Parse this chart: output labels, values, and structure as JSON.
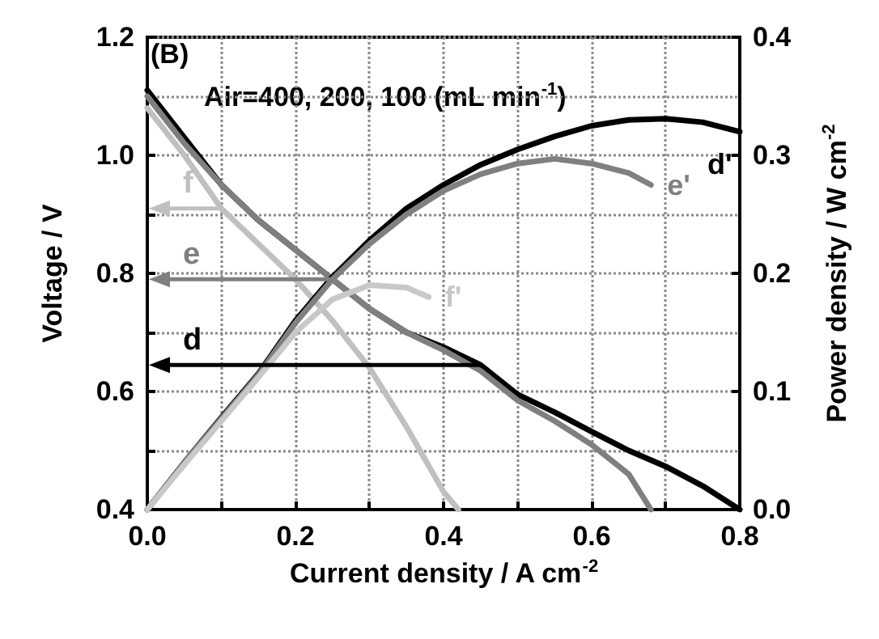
{
  "chart_data": {
    "type": "line",
    "xlabel": "Current density / A cm$^{-2}$",
    "ylabel": "Voltage / V",
    "y2label": "Power density / W cm$^{-2}$",
    "annotations": [
      "(B)",
      "Air=400, 200, 100 (mL min$^{-1}$)",
      {
        "text": "d",
        "x": 0.45,
        "y": 0.645
      },
      {
        "text": "e",
        "x": 0.25,
        "y": 0.79
      },
      {
        "text": "f",
        "x": 0.1,
        "y": 0.91
      }
    ],
    "xlim": [
      0,
      0.8
    ],
    "ylim": [
      0.4,
      1.2
    ],
    "y2lim": [
      0,
      0.4
    ],
    "xticks": [
      {
        "value": 0,
        "label": "0.0"
      },
      {
        "value": 0.1,
        "label": null
      },
      {
        "value": 0.2,
        "label": "0.2"
      },
      {
        "value": 0.3,
        "label": null
      },
      {
        "value": 0.4,
        "label": "0.4"
      },
      {
        "value": 0.5,
        "label": null
      },
      {
        "value": 0.6,
        "label": "0.6"
      },
      {
        "value": 0.7,
        "label": null
      },
      {
        "value": 0.8,
        "label": "0.8"
      }
    ],
    "yticks": [
      {
        "value": 0.4,
        "label": "0.4"
      },
      {
        "value": 0.5,
        "label": null
      },
      {
        "value": 0.6,
        "label": "0.6"
      },
      {
        "value": 0.7,
        "label": null
      },
      {
        "value": 0.8,
        "label": "0.8"
      },
      {
        "value": 0.9,
        "label": null
      },
      {
        "value": 1.0,
        "label": "1.0"
      },
      {
        "value": 1.1,
        "label": null
      },
      {
        "value": 1.2,
        "label": "1.2"
      }
    ],
    "y2ticks": [
      {
        "value": 0,
        "label": "0.0"
      },
      {
        "value": 0.1,
        "label": "0.1"
      },
      {
        "value": 0.2,
        "label": "0.2"
      },
      {
        "value": 0.3,
        "label": "0.3"
      },
      {
        "value": 0.4,
        "label": "0.4"
      }
    ],
    "grid": true,
    "marker": "none",
    "line_style": "solid",
    "legend": false,
    "series": [
      {
        "color": "#000000",
        "x": [
          0,
          0.05,
          0.1,
          0.15,
          0.2,
          0.25,
          0.3,
          0.35,
          0.4,
          0.45,
          0.5,
          0.55,
          0.6,
          0.65,
          0.7,
          0.75,
          0.8
        ],
        "values": [
          1.11,
          1.03,
          0.95,
          0.89,
          0.84,
          0.79,
          0.74,
          0.7,
          0.675,
          0.645,
          0.595,
          0.565,
          0.532,
          0.5,
          0.473,
          0.44,
          0.4
        ]
      },
      {
        "color": "#7f7f7f",
        "x": [
          0,
          0.05,
          0.1,
          0.15,
          0.2,
          0.25,
          0.3,
          0.35,
          0.4,
          0.45,
          0.5,
          0.55,
          0.6,
          0.65,
          0.68
        ],
        "values": [
          1.1,
          1.02,
          0.95,
          0.89,
          0.84,
          0.79,
          0.74,
          0.7,
          0.67,
          0.635,
          0.585,
          0.55,
          0.51,
          0.46,
          0.4
        ]
      },
      {
        "color": "#c0c0c0",
        "x": [
          0,
          0.05,
          0.1,
          0.15,
          0.2,
          0.25,
          0.3,
          0.35,
          0.4,
          0.42
        ],
        "values": [
          1.08,
          1.0,
          0.91,
          0.85,
          0.79,
          0.72,
          0.64,
          0.54,
          0.43,
          0.4
        ]
      },
      {
        "name": "d'",
        "axis": "y2",
        "color": "#000000",
        "x": [
          0,
          0.05,
          0.1,
          0.15,
          0.2,
          0.25,
          0.3,
          0.35,
          0.4,
          0.45,
          0.5,
          0.55,
          0.6,
          0.65,
          0.7,
          0.75,
          0.8
        ],
        "values": [
          0,
          0.04,
          0.078,
          0.115,
          0.16,
          0.197,
          0.228,
          0.255,
          0.275,
          0.292,
          0.305,
          0.316,
          0.325,
          0.33,
          0.331,
          0.328,
          0.32
        ]
      },
      {
        "name": "e'",
        "axis": "y2",
        "color": "#808080",
        "x": [
          0,
          0.05,
          0.1,
          0.15,
          0.2,
          0.25,
          0.3,
          0.35,
          0.4,
          0.45,
          0.5,
          0.55,
          0.6,
          0.65,
          0.68
        ],
        "values": [
          0,
          0.04,
          0.077,
          0.114,
          0.158,
          0.195,
          0.225,
          0.25,
          0.27,
          0.284,
          0.293,
          0.297,
          0.293,
          0.285,
          0.275
        ]
      },
      {
        "name": "f'",
        "axis": "y2",
        "color": "#c8c8c8",
        "x": [
          0,
          0.05,
          0.1,
          0.15,
          0.2,
          0.25,
          0.3,
          0.35,
          0.38
        ],
        "values": [
          0,
          0.038,
          0.075,
          0.112,
          0.15,
          0.178,
          0.19,
          0.188,
          0.18
        ]
      }
    ]
  }
}
